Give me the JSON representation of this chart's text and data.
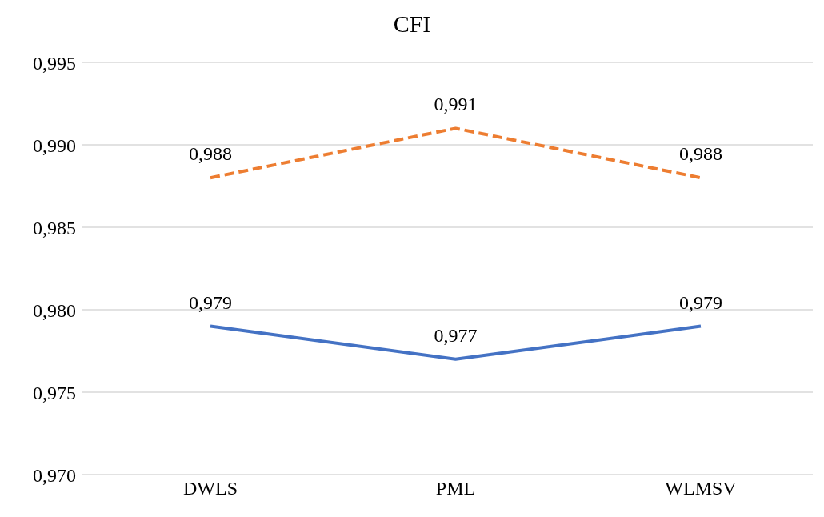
{
  "chart_data": {
    "type": "line",
    "title": "CFI",
    "categories": [
      "DWLS",
      "PML",
      "WLMSV"
    ],
    "series": [
      {
        "color": "#ed7d31",
        "values": [
          0.988,
          0.991,
          0.988
        ],
        "line_style": "dashed",
        "value_labels": [
          "0,988",
          "0,991",
          "0,988"
        ]
      },
      {
        "color": "#4472c4",
        "values": [
          0.979,
          0.977,
          0.979
        ],
        "line_style": "solid",
        "value_labels": [
          "0,979",
          "0,977",
          "0,979"
        ]
      }
    ],
    "ylim": [
      0.97,
      0.995
    ],
    "yticks": [
      {
        "value": 0.97,
        "label": "0,970"
      },
      {
        "value": 0.975,
        "label": "0,975"
      },
      {
        "value": 0.98,
        "label": "0,980"
      },
      {
        "value": 0.985,
        "label": "0,985"
      },
      {
        "value": 0.99,
        "label": "0,990"
      },
      {
        "value": 0.995,
        "label": "0,995"
      }
    ],
    "grid": "y",
    "marker": "none",
    "legend": false
  }
}
